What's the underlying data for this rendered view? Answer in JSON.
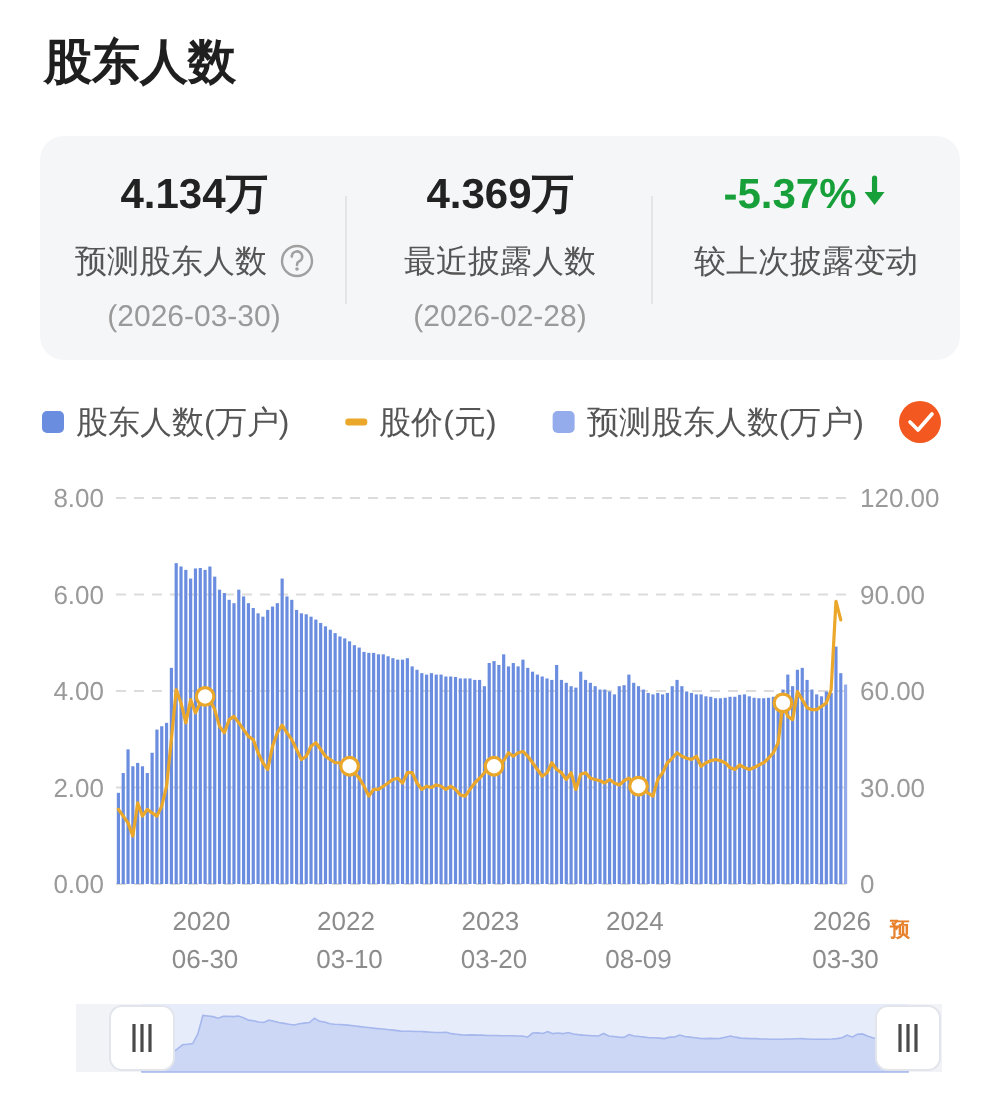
{
  "chart_data": [
    {
      "type": "other",
      "title": "股东人数",
      "annotations": [
        "4.134万",
        "预测股东人数",
        "(2026-03-30)",
        "4.369万",
        "最近披露人数",
        "(2026-02-28)",
        "-5.37%",
        "较上次披露变动"
      ]
    },
    {
      "type": "bar",
      "categories": [
        null,
        null,
        null,
        null,
        null,
        null,
        null,
        null,
        null,
        null,
        null,
        null,
        null,
        null,
        null,
        null,
        null,
        null,
        "2020\n06-30",
        null,
        null,
        null,
        null,
        null,
        null,
        null,
        null,
        null,
        null,
        null,
        null,
        null,
        null,
        null,
        null,
        null,
        null,
        null,
        null,
        null,
        null,
        null,
        null,
        null,
        null,
        null,
        null,
        null,
        "2022\n03-10",
        null,
        null,
        null,
        null,
        null,
        null,
        null,
        null,
        null,
        null,
        null,
        null,
        null,
        null,
        null,
        null,
        null,
        null,
        null,
        null,
        null,
        null,
        null,
        null,
        null,
        null,
        null,
        null,
        null,
        "2023\n03-20",
        null,
        null,
        null,
        null,
        null,
        null,
        null,
        null,
        null,
        null,
        null,
        null,
        null,
        null,
        null,
        null,
        null,
        null,
        null,
        null,
        null,
        null,
        null,
        null,
        null,
        null,
        null,
        null,
        null,
        "2024\n08-09",
        null,
        null,
        null,
        null,
        null,
        null,
        null,
        null,
        null,
        null,
        null,
        null,
        null,
        null,
        null,
        null,
        null,
        null,
        null,
        null,
        null,
        null,
        null,
        null,
        null,
        null,
        null,
        null,
        null,
        null,
        null,
        null,
        null,
        null,
        null,
        null,
        null,
        null,
        null,
        null,
        null,
        null,
        "2026\n03-30"
      ],
      "series": [
        {
          "name": "股东人数(万户)",
          "color": "#6a8ddf",
          "values": [
            1.89,
            2.3,
            2.79,
            2.44,
            2.51,
            2.44,
            2.3,
            2.72,
            3.2,
            3.27,
            3.34,
            4.48,
            6.65,
            6.58,
            6.51,
            6.33,
            6.54,
            6.55,
            6.51,
            6.58,
            6.37,
            6.1,
            6.03,
            5.89,
            5.82,
            6.1,
            5.96,
            5.82,
            5.72,
            5.61,
            5.54,
            5.68,
            5.75,
            5.82,
            6.33,
            5.96,
            5.89,
            5.68,
            5.61,
            5.59,
            5.54,
            5.48,
            5.41,
            5.34,
            5.27,
            5.2,
            5.13,
            5.09,
            5.03,
            4.95,
            4.9,
            4.81,
            4.79,
            4.79,
            4.76,
            4.76,
            4.72,
            4.68,
            4.65,
            4.65,
            4.68,
            4.51,
            4.44,
            4.37,
            4.34,
            4.37,
            4.34,
            4.34,
            4.3,
            4.3,
            4.29,
            4.26,
            4.26,
            4.26,
            4.23,
            4.23,
            4.1,
            4.58,
            4.62,
            4.54,
            4.76,
            4.51,
            4.58,
            4.51,
            4.65,
            4.48,
            4.4,
            4.34,
            4.3,
            4.26,
            4.23,
            4.54,
            4.23,
            4.17,
            4.1,
            4.07,
            4.4,
            4.23,
            4.17,
            4.1,
            4.03,
            4.03,
            3.99,
            3.93,
            4.1,
            4.12,
            4.34,
            4.17,
            4.1,
            4.03,
            3.96,
            3.93,
            3.96,
            3.93,
            3.96,
            4.1,
            4.23,
            4.1,
            3.99,
            3.96,
            3.93,
            3.93,
            3.89,
            3.88,
            3.85,
            3.85,
            3.86,
            3.88,
            3.88,
            3.92,
            3.93,
            3.89,
            3.86,
            3.85,
            3.85,
            3.86,
            3.88,
            3.93,
            4.03,
            4.34,
            4.1,
            4.44,
            4.48,
            4.23,
            4.03,
            3.93,
            3.89,
            3.99,
            3.96,
            4.92,
            4.369,
            null
          ]
        },
        {
          "name": "股价(元)",
          "type": "line",
          "axis": "y2",
          "color": "#eba72a",
          "values": [
            23.2,
            21.1,
            19,
            14.9,
            25.2,
            21.1,
            23.2,
            22.1,
            21.1,
            24.2,
            30.4,
            44.9,
            60.4,
            56.3,
            50.1,
            57.3,
            53.2,
            56.3,
            58.3,
            57.3,
            54.2,
            49,
            47,
            51.1,
            52.1,
            50.1,
            48,
            45.9,
            44.9,
            40.8,
            37.7,
            35.6,
            42.8,
            47,
            49.4,
            47,
            44.9,
            41.8,
            38.7,
            39.7,
            42.8,
            43.9,
            41.8,
            39.7,
            38.7,
            37.7,
            37.7,
            36.6,
            36.6,
            34.6,
            32.9,
            30.4,
            27.3,
            29.4,
            29.4,
            30.4,
            31.4,
            32.5,
            32.9,
            31.4,
            34.6,
            34.6,
            31.4,
            29.4,
            30.4,
            30,
            30.8,
            30.4,
            29.4,
            30.4,
            29.4,
            27.7,
            27.3,
            29.4,
            31.4,
            32.9,
            34.6,
            36.2,
            36.6,
            37,
            38.3,
            40.8,
            39.7,
            40.8,
            41.2,
            39.7,
            37.7,
            35.6,
            33.5,
            34.6,
            37.7,
            35.6,
            34.6,
            32.5,
            34.6,
            29.4,
            34.1,
            34.6,
            32.9,
            32.5,
            32.1,
            31.4,
            32.5,
            31.4,
            30.8,
            32.1,
            32.9,
            31.4,
            30.4,
            29.4,
            28.3,
            27.3,
            32.5,
            34.6,
            37.7,
            39.1,
            40.8,
            39.7,
            39.1,
            38.7,
            39.7,
            36.6,
            37.7,
            38.3,
            38.7,
            38.3,
            37.7,
            36.2,
            35.6,
            37,
            36.2,
            35.6,
            36.2,
            37,
            37.7,
            39.1,
            40.8,
            43.9,
            56.3,
            52.1,
            51.1,
            59.8,
            57.3,
            54.8,
            54.2,
            54.2,
            55.2,
            56.3,
            60.4,
            87.9,
            82.1,
            null
          ]
        },
        {
          "name": "预测股东人数(万户)",
          "color": "#94acec",
          "values": [
            null,
            null,
            null,
            null,
            null,
            null,
            null,
            null,
            null,
            null,
            null,
            null,
            null,
            null,
            null,
            null,
            null,
            null,
            null,
            null,
            null,
            null,
            null,
            null,
            null,
            null,
            null,
            null,
            null,
            null,
            null,
            null,
            null,
            null,
            null,
            null,
            null,
            null,
            null,
            null,
            null,
            null,
            null,
            null,
            null,
            null,
            null,
            null,
            null,
            null,
            null,
            null,
            null,
            null,
            null,
            null,
            null,
            null,
            null,
            null,
            null,
            null,
            null,
            null,
            null,
            null,
            null,
            null,
            null,
            null,
            null,
            null,
            null,
            null,
            null,
            null,
            null,
            null,
            null,
            null,
            null,
            null,
            null,
            null,
            null,
            null,
            null,
            null,
            null,
            null,
            null,
            null,
            null,
            null,
            null,
            null,
            null,
            null,
            null,
            null,
            null,
            null,
            null,
            null,
            null,
            null,
            null,
            null,
            null,
            null,
            null,
            null,
            null,
            null,
            null,
            null,
            null,
            null,
            null,
            null,
            null,
            null,
            null,
            null,
            null,
            null,
            null,
            null,
            null,
            null,
            null,
            null,
            null,
            null,
            null,
            null,
            null,
            null,
            null,
            null,
            null,
            null,
            null,
            null,
            null,
            null,
            null,
            null,
            null,
            null,
            null,
            4.134
          ]
        },
        {
          "type": "scatter",
          "axis": "y2",
          "color": "#eba72a",
          "marker": "circle",
          "values": [
            null,
            null,
            null,
            null,
            null,
            null,
            null,
            null,
            null,
            null,
            null,
            null,
            null,
            null,
            null,
            null,
            null,
            null,
            58.3,
            null,
            null,
            null,
            null,
            null,
            null,
            null,
            null,
            null,
            null,
            null,
            null,
            null,
            null,
            null,
            null,
            null,
            null,
            null,
            null,
            null,
            null,
            null,
            null,
            null,
            null,
            null,
            null,
            null,
            36.6,
            null,
            null,
            null,
            null,
            null,
            null,
            null,
            null,
            null,
            null,
            null,
            null,
            null,
            null,
            null,
            null,
            null,
            null,
            null,
            null,
            null,
            null,
            null,
            null,
            null,
            null,
            null,
            null,
            null,
            36.6,
            null,
            null,
            null,
            null,
            null,
            null,
            null,
            null,
            null,
            null,
            null,
            null,
            null,
            null,
            null,
            null,
            null,
            null,
            null,
            null,
            null,
            null,
            null,
            null,
            null,
            null,
            null,
            null,
            null,
            30.4,
            null,
            null,
            null,
            null,
            null,
            null,
            null,
            null,
            null,
            null,
            null,
            null,
            null,
            null,
            null,
            null,
            null,
            null,
            null,
            null,
            null,
            null,
            null,
            null,
            null,
            null,
            null,
            null,
            null,
            56.3,
            null,
            null,
            null,
            null,
            null,
            null,
            null,
            null,
            null,
            null,
            null,
            null,
            null
          ]
        }
      ],
      "ylim": [
        0,
        8
      ],
      "yticks": [
        {
          "value": 0,
          "label": "0.00"
        },
        {
          "value": 2,
          "label": "2.00"
        },
        {
          "value": 4,
          "label": "4.00"
        },
        {
          "value": 6,
          "label": "6.00"
        },
        {
          "value": 8,
          "label": "8.00"
        }
      ],
      "y2lim": [
        0,
        120
      ],
      "y2ticks": [
        0,
        {
          "value": 30,
          "label": "30.00"
        },
        {
          "value": 60,
          "label": "60.00"
        },
        {
          "value": 90,
          "label": "90.00"
        },
        {
          "value": 120,
          "label": "120.00"
        }
      ],
      "grid": "y",
      "legend": "top",
      "annotations": [
        "预"
      ]
    }
  ]
}
